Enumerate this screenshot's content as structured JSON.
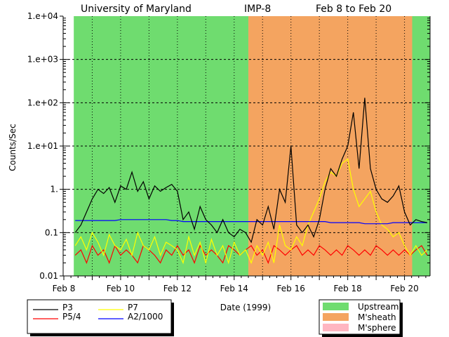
{
  "chart_data": {
    "type": "line",
    "title_left": "University of Maryland",
    "title_mid": "IMP-8",
    "title_right": "Feb 8 to Feb 20",
    "xlabel": "Date (1999)",
    "ylabel": "Counts/Sec",
    "yscale": "log",
    "ylim": [
      0.01,
      10000
    ],
    "xlim": [
      8,
      20.9
    ],
    "y_ticks": [
      {
        "value": 10000,
        "label": "1.e+04"
      },
      {
        "value": 1000,
        "label": "1.e+03"
      },
      {
        "value": 100,
        "label": "1.e+02"
      },
      {
        "value": 10,
        "label": "1.e+01"
      },
      {
        "value": 1,
        "label": "1."
      },
      {
        "value": 0.1,
        "label": "0.1"
      },
      {
        "value": 0.01,
        "label": "0.01"
      }
    ],
    "x_ticks": [
      {
        "value": 8,
        "label": "Feb 8"
      },
      {
        "value": 10,
        "label": "Feb 10"
      },
      {
        "value": 12,
        "label": "Feb 12"
      },
      {
        "value": 14,
        "label": "Feb 14"
      },
      {
        "value": 16,
        "label": "Feb 16"
      },
      {
        "value": 18,
        "label": "Feb 18"
      },
      {
        "value": 20,
        "label": "Feb 20"
      }
    ],
    "grid": true,
    "regions": [
      {
        "name": "Upstream",
        "start": 8.35,
        "end": 14.5,
        "color": "#6fdc6f"
      },
      {
        "name": "M'sheath",
        "start": 14.5,
        "end": 20.27,
        "color": "#f4a460"
      },
      {
        "name": "Upstream",
        "start": 20.27,
        "end": 20.89,
        "color": "#6fdc6f"
      }
    ],
    "region_legend": [
      {
        "label": "Upstream",
        "color": "#6fdc6f"
      },
      {
        "label": "M'sheath",
        "color": "#f4a460"
      },
      {
        "label": "M'sphere",
        "color": "#ffb6c1"
      }
    ],
    "x_start": 8.4,
    "x_step": 0.2,
    "series": [
      {
        "name": "P3",
        "color": "#000000",
        "values": [
          0.1,
          0.15,
          0.3,
          0.6,
          1.0,
          0.8,
          1.1,
          0.5,
          1.2,
          1.0,
          2.5,
          0.9,
          1.5,
          0.6,
          1.2,
          0.9,
          1.1,
          1.3,
          0.9,
          0.2,
          0.3,
          0.12,
          0.4,
          0.2,
          0.15,
          0.1,
          0.2,
          0.1,
          0.08,
          0.12,
          0.1,
          0.06,
          0.2,
          0.15,
          0.4,
          0.12,
          1.0,
          0.5,
          10,
          0.15,
          0.1,
          0.15,
          0.08,
          0.2,
          1.0,
          3,
          2,
          5,
          10,
          60,
          3,
          130,
          3,
          1.0,
          0.6,
          0.5,
          0.7,
          1.2,
          0.3,
          0.15,
          0.2,
          0.18,
          0.17
        ]
      },
      {
        "name": "P5/4",
        "color": "#ff0000",
        "values": [
          0.03,
          0.04,
          0.02,
          0.05,
          0.03,
          0.04,
          0.02,
          0.05,
          0.03,
          0.04,
          0.03,
          0.02,
          0.05,
          0.04,
          0.03,
          0.02,
          0.04,
          0.03,
          0.05,
          0.03,
          0.04,
          0.02,
          0.05,
          0.03,
          0.04,
          0.03,
          0.02,
          0.05,
          0.04,
          0.03,
          0.04,
          0.05,
          0.03,
          0.04,
          0.02,
          0.05,
          0.04,
          0.03,
          0.04,
          0.05,
          0.03,
          0.04,
          0.03,
          0.05,
          0.04,
          0.03,
          0.04,
          0.03,
          0.05,
          0.04,
          0.03,
          0.04,
          0.03,
          0.05,
          0.04,
          0.03,
          0.04,
          0.03,
          0.04,
          0.03,
          0.04,
          0.05,
          0.03
        ]
      },
      {
        "name": "P7",
        "color": "#ffff00",
        "values": [
          0.05,
          0.08,
          0.04,
          0.1,
          0.06,
          0.03,
          0.09,
          0.05,
          0.04,
          0.07,
          0.03,
          0.1,
          0.05,
          0.04,
          0.08,
          0.03,
          0.06,
          0.05,
          0.04,
          0.02,
          0.08,
          0.03,
          0.06,
          0.02,
          0.07,
          0.03,
          0.05,
          0.02,
          0.06,
          0.03,
          0.04,
          0.02,
          0.05,
          0.03,
          0.06,
          0.02,
          0.15,
          0.05,
          0.04,
          0.08,
          0.05,
          0.15,
          0.3,
          0.6,
          1.5,
          2.5,
          2.0,
          4,
          5,
          1.0,
          0.4,
          0.6,
          0.9,
          0.3,
          0.15,
          0.12,
          0.08,
          0.1,
          0.05,
          0.03,
          0.05,
          0.03,
          0.04
        ]
      },
      {
        "name": "A2/1000",
        "color": "#0000ff",
        "values": [
          0.19,
          0.19,
          0.19,
          0.19,
          0.19,
          0.19,
          0.19,
          0.19,
          0.2,
          0.2,
          0.2,
          0.2,
          0.2,
          0.2,
          0.2,
          0.2,
          0.2,
          0.19,
          0.19,
          0.18,
          0.18,
          0.18,
          0.18,
          0.18,
          0.18,
          0.18,
          0.18,
          0.18,
          0.18,
          0.18,
          0.18,
          0.18,
          0.18,
          0.18,
          0.18,
          0.18,
          0.18,
          0.18,
          0.18,
          0.18,
          0.18,
          0.18,
          0.18,
          0.18,
          0.18,
          0.17,
          0.17,
          0.17,
          0.17,
          0.17,
          0.17,
          0.16,
          0.16,
          0.16,
          0.16,
          0.16,
          0.17,
          0.17,
          0.17,
          0.17,
          0.17,
          0.17,
          0.17
        ]
      }
    ],
    "series_legend": [
      {
        "label": "P3",
        "color": "#000000"
      },
      {
        "label": "P5/4",
        "color": "#ff0000"
      },
      {
        "label": "P7",
        "color": "#ffff00"
      },
      {
        "label": "A2/1000",
        "color": "#0000ff"
      }
    ]
  }
}
